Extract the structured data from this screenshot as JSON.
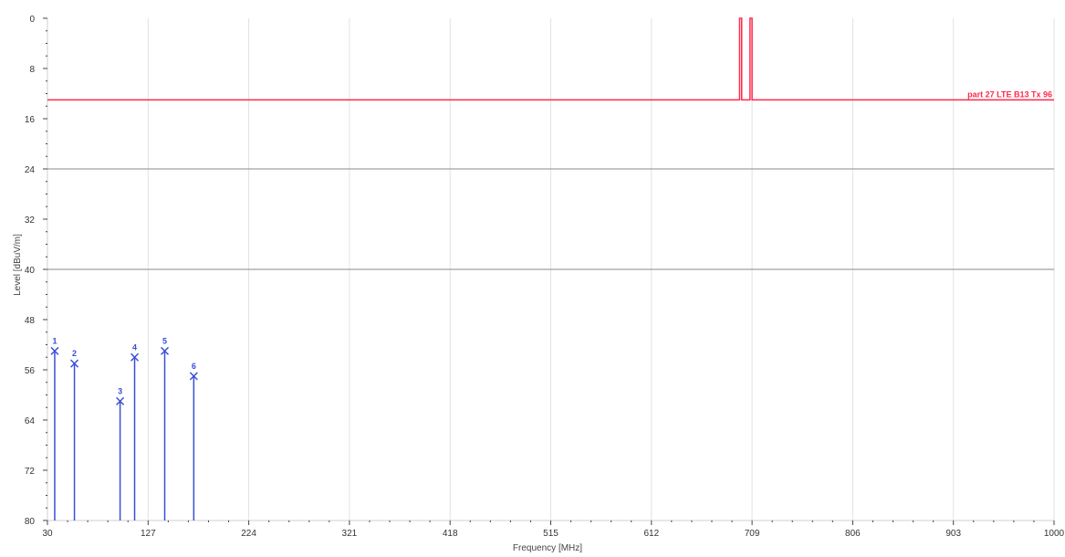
{
  "chart_data": {
    "type": "line",
    "xlabel": "Frequency [MHz]",
    "ylabel": "Level [dBuV/m]",
    "xlim": [
      30,
      1000
    ],
    "ylim": [
      80,
      0
    ],
    "x_ticks": [
      30,
      127,
      224,
      321,
      418,
      515,
      612,
      709,
      806,
      903,
      1000
    ],
    "y_ticks": [
      0,
      8,
      16,
      24,
      32,
      40,
      48,
      56,
      64,
      72,
      80
    ],
    "grid": true,
    "reference_lines": [
      24,
      40
    ],
    "limit_line": {
      "name": "part 27 LTE B13 Tx 96",
      "color": "#ff2a4a",
      "points": [
        [
          30,
          13
        ],
        [
          697,
          13
        ],
        [
          697,
          0
        ],
        [
          699,
          0
        ],
        [
          699,
          13
        ],
        [
          707,
          13
        ],
        [
          707,
          0
        ],
        [
          709,
          0
        ],
        [
          709,
          13
        ],
        [
          1000,
          13
        ]
      ]
    },
    "series": [
      {
        "color": "#3a4fd8",
        "markers": [
          {
            "label": "1",
            "x": 37,
            "y": 53
          },
          {
            "label": "2",
            "x": 56,
            "y": 55
          },
          {
            "label": "3",
            "x": 100,
            "y": 61
          },
          {
            "label": "4",
            "x": 114,
            "y": 54
          },
          {
            "label": "5",
            "x": 143,
            "y": 53
          },
          {
            "label": "6",
            "x": 171,
            "y": 57
          }
        ]
      }
    ]
  }
}
